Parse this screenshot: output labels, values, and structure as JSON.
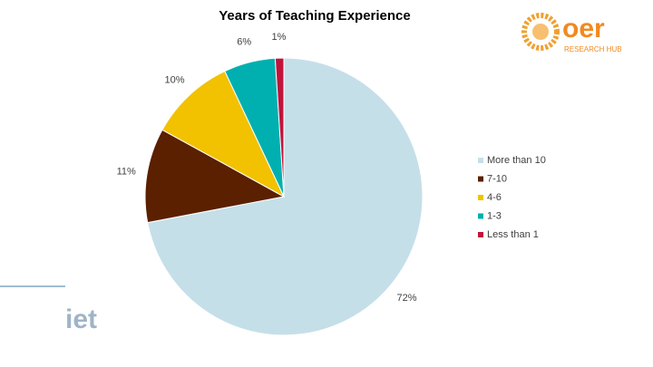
{
  "chart_data": {
    "type": "pie",
    "title": "Years of Teaching Experience",
    "categories": [
      "More than 10",
      "7-10",
      "4-6",
      "1-3",
      "Less than 1"
    ],
    "values": [
      72,
      11,
      10,
      6,
      1
    ],
    "value_labels": [
      "72%",
      "11%",
      "10%",
      "6%",
      "1%"
    ],
    "colors": [
      "#c5dfe9",
      "#5a2000",
      "#f2c200",
      "#00b0b0",
      "#c0143c"
    ],
    "legend": "right"
  },
  "logos": {
    "oer": "oer",
    "oer_subtitle": "RESEARCH HUB",
    "iet": "iet"
  }
}
